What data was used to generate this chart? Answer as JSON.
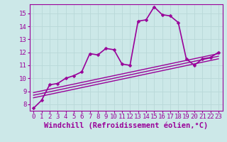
{
  "background_color": "#cce8e8",
  "grid_color": "#b8d8d8",
  "line_color": "#990099",
  "xlim": [
    -0.5,
    23.5
  ],
  "ylim": [
    7.5,
    15.7
  ],
  "xlabel": "Windchill (Refroidissement éolien,°C)",
  "xticks": [
    0,
    1,
    2,
    3,
    4,
    5,
    6,
    7,
    8,
    9,
    10,
    11,
    12,
    13,
    14,
    15,
    16,
    17,
    18,
    19,
    20,
    21,
    22,
    23
  ],
  "yticks": [
    8,
    9,
    10,
    11,
    12,
    13,
    14,
    15
  ],
  "main_series": {
    "x": [
      0,
      1,
      2,
      3,
      4,
      5,
      6,
      7,
      8,
      9,
      10,
      11,
      12,
      13,
      14,
      15,
      16,
      17,
      18,
      19,
      20,
      21,
      22,
      23
    ],
    "y": [
      7.7,
      8.3,
      9.5,
      9.6,
      10.0,
      10.2,
      10.5,
      11.9,
      11.8,
      12.3,
      12.2,
      11.1,
      11.0,
      14.4,
      14.5,
      15.5,
      14.9,
      14.8,
      14.3,
      11.5,
      11.0,
      11.5,
      11.6,
      12.0
    ]
  },
  "straight_lines": [
    {
      "x0": 0,
      "y0": 8.5,
      "x1": 23,
      "y1": 11.5
    },
    {
      "x0": 0,
      "y0": 8.7,
      "x1": 23,
      "y1": 11.7
    },
    {
      "x0": 0,
      "y0": 8.9,
      "x1": 23,
      "y1": 11.9
    }
  ],
  "tick_label_fontsize": 6.5,
  "xlabel_fontsize": 7.5,
  "tick_color": "#990099",
  "label_color": "#990099",
  "marker_size": 2.5,
  "main_linewidth": 1.2,
  "straight_linewidth": 1.0
}
